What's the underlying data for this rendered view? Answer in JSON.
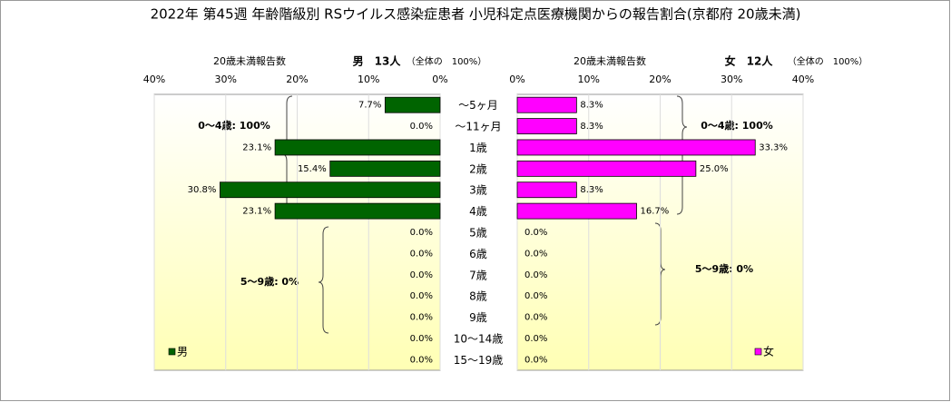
{
  "chart_data": [
    {
      "type": "bar",
      "orientation": "horizontal",
      "direction": "leftward",
      "title": "2022年 第45週 年齢階級別 RSウイルス感染症患者 小児科定点医療機関からの報告割合(京都府 20歳未満)",
      "subtitle": "20歳未満報告数",
      "group_label": "男　13人",
      "share_label": "（全体の　100%）",
      "annotations": [
        "0～4歳: 100%",
        "5～9歳: 0%"
      ],
      "categories": [
        "～5ヶ月",
        "～11ヶ月",
        "1歳",
        "2歳",
        "3歳",
        "4歳",
        "5歳",
        "6歳",
        "7歳",
        "8歳",
        "9歳",
        "10～14歳",
        "15～19歳"
      ],
      "series": [
        {
          "name": "男",
          "color": "#006400",
          "values": [
            7.7,
            0,
            23.1,
            15.4,
            30.8,
            23.1,
            0,
            0,
            0,
            0,
            0,
            0,
            0
          ],
          "value_labels": [
            "7.7%",
            "0.0%",
            "23.1%",
            "15.4%",
            "30.8%",
            "23.1%",
            "0.0%",
            "0.0%",
            "0.0%",
            "0.0%",
            "0.0%",
            "0.0%",
            "0.0%"
          ]
        }
      ],
      "xlim": [
        0,
        40
      ],
      "xticks": [
        {
          "value": 40,
          "label": "40%"
        },
        {
          "value": 30,
          "label": "30%"
        },
        {
          "value": 20,
          "label": "20%"
        },
        {
          "value": 10,
          "label": "10%"
        },
        {
          "value": 0,
          "label": "0%"
        }
      ],
      "grid": true,
      "legend": "lower left"
    },
    {
      "type": "bar",
      "orientation": "horizontal",
      "direction": "rightward",
      "subtitle": "20歳未満報告数",
      "group_label": "女　12人",
      "share_label": "（全体の　100%）",
      "annotations": [
        "0～4歳: 100%",
        "5～9歳: 0%"
      ],
      "series": [
        {
          "name": "女",
          "color": "#ff00ff",
          "values": [
            8.3,
            8.3,
            33.3,
            25.0,
            8.3,
            16.7,
            0,
            0,
            0,
            0,
            0,
            0,
            0
          ],
          "value_labels": [
            "8.3%",
            "8.3%",
            "33.3%",
            "25.0%",
            "8.3%",
            "16.7%",
            "0.0%",
            "0.0%",
            "0.0%",
            "0.0%",
            "0.0%",
            "0.0%",
            "0.0%"
          ]
        }
      ],
      "xlim": [
        0,
        40
      ],
      "xticks": [
        {
          "value": 0,
          "label": "0%"
        },
        {
          "value": 10,
          "label": "10%"
        },
        {
          "value": 20,
          "label": "20%"
        },
        {
          "value": 30,
          "label": "30%"
        },
        {
          "value": 40,
          "label": "40%"
        }
      ],
      "grid": true,
      "legend": "lower right"
    }
  ]
}
